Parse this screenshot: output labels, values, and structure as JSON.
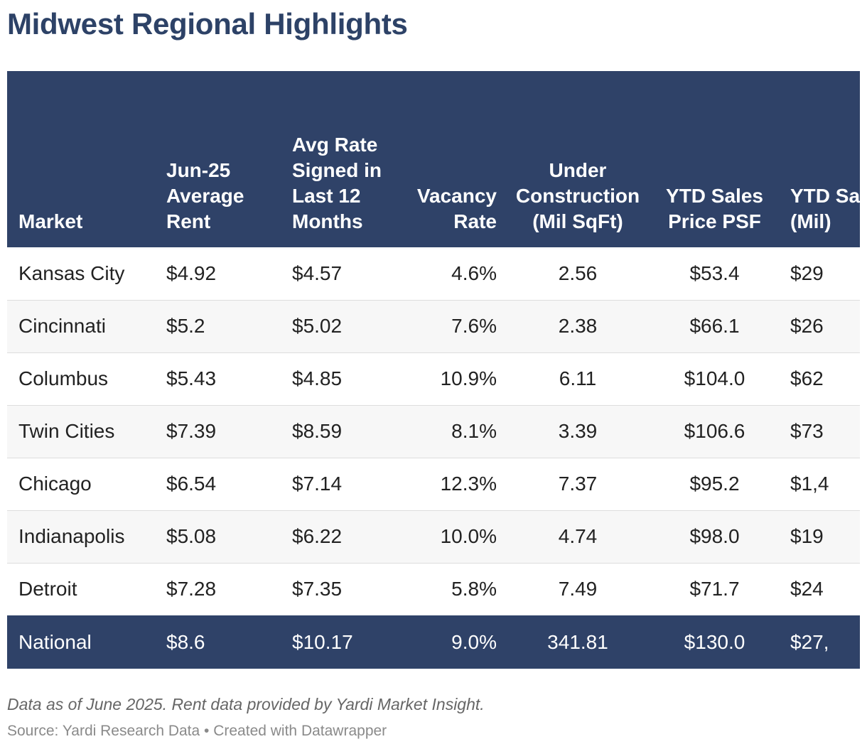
{
  "chart_data": {
    "type": "table",
    "title": "Midwest Regional Highlights",
    "columns": [
      "Market",
      "Jun-25 Average Rent",
      "Avg Rate Signed in Last 12 Months",
      "Vacancy Rate",
      "Under Construction (Mil SqFt)",
      "YTD Sales Price PSF",
      "YTD Sales (Mil)"
    ],
    "rows": [
      [
        "Kansas City",
        "$4.92",
        "$4.57",
        "4.6%",
        "2.56",
        "$53.4",
        "$29"
      ],
      [
        "Cincinnati",
        "$5.2",
        "$5.02",
        "7.6%",
        "2.38",
        "$66.1",
        "$26"
      ],
      [
        "Columbus",
        "$5.43",
        "$4.85",
        "10.9%",
        "6.11",
        "$104.0",
        "$62"
      ],
      [
        "Twin Cities",
        "$7.39",
        "$8.59",
        "8.1%",
        "3.39",
        "$106.6",
        "$73"
      ],
      [
        "Chicago",
        "$6.54",
        "$7.14",
        "12.3%",
        "7.37",
        "$95.2",
        "$1,4"
      ],
      [
        "Indianapolis",
        "$5.08",
        "$6.22",
        "10.0%",
        "4.74",
        "$98.0",
        "$19"
      ],
      [
        "Detroit",
        "$7.28",
        "$7.35",
        "5.8%",
        "7.49",
        "$71.7",
        "$24"
      ]
    ],
    "total_row": [
      "National",
      "$8.6",
      "$10.17",
      "9.0%",
      "341.81",
      "$130.0",
      "$27,"
    ],
    "notes": "Data as of June 2025. Rent data provided by Yardi Market Insight.",
    "source": "Source: Yardi Research Data • Created with Datawrapper"
  },
  "colors": {
    "title": "#2d4267",
    "header_bg": "#2f4268",
    "header_text": "#ffffff",
    "row_alt_bg": "#f7f7f7",
    "row_border": "#dddddd"
  }
}
